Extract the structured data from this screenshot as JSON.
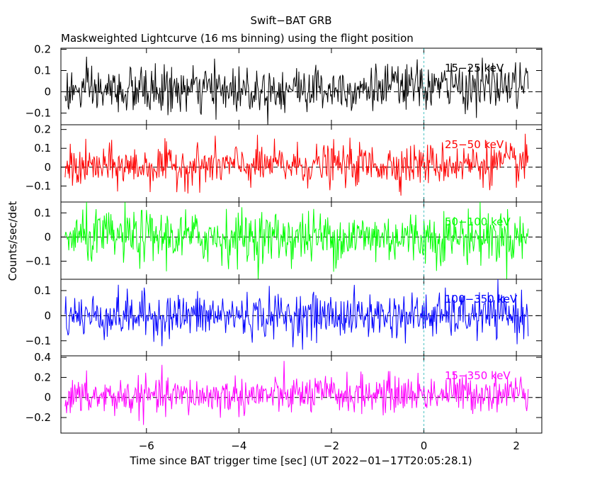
{
  "chart_data": {
    "type": "line",
    "title": "Swift−BAT GRB",
    "subtitle": "Maskweighted Lightcurve (16 ms binning) using the flight position",
    "xlabel": "Time since BAT trigger time [sec] (UT 2022−01−17T20:05:28.1)",
    "ylabel": "Counts/sec/det",
    "xlim": [
      -7.85,
      2.55
    ],
    "x_ticks": [
      -6,
      -4,
      -2,
      0,
      2
    ],
    "x_tick_labels": [
      "−6",
      "−4",
      "−2",
      "0",
      "2"
    ],
    "binning_sec": 0.016,
    "x_start": -7.76,
    "x_end": 2.26,
    "trigger_marker_x": 0,
    "panels": [
      {
        "band": "15−25 keV",
        "color": "#000000",
        "ylim": [
          -0.155,
          0.205
        ],
        "y_ticks": [
          -0.1,
          0,
          0.1,
          0.2
        ],
        "y_tick_labels": [
          "−0.1",
          "0",
          "0.1",
          "0.2"
        ],
        "noise_sigma": 0.055,
        "mean_start": 0.0,
        "mean_end": 0.03
      },
      {
        "band": "25−50 keV",
        "color": "#ff0000",
        "ylim": [
          -0.185,
          0.225
        ],
        "y_ticks": [
          -0.1,
          0,
          0.1,
          0.2
        ],
        "y_tick_labels": [
          "−0.1",
          "0",
          "0.1",
          "0.2"
        ],
        "noise_sigma": 0.055,
        "mean_start": 0.0,
        "mean_end": 0.02
      },
      {
        "band": "50−100 keV",
        "color": "#00ff00",
        "ylim": [
          -0.175,
          0.145
        ],
        "y_ticks": [
          -0.1,
          0,
          0.1
        ],
        "y_tick_labels": [
          "−0.1",
          "0",
          "0.1"
        ],
        "noise_sigma": 0.055,
        "mean_start": 0.0,
        "mean_end": 0.0
      },
      {
        "band": "100−350 keV",
        "color": "#0000ff",
        "ylim": [
          -0.16,
          0.145
        ],
        "y_ticks": [
          -0.1,
          0,
          0.1
        ],
        "y_tick_labels": [
          "−0.1",
          "0",
          "0.1"
        ],
        "noise_sigma": 0.045,
        "mean_start": 0.0,
        "mean_end": 0.0
      },
      {
        "band": "15−350 keV",
        "color": "#ff00ff",
        "ylim": [
          -0.355,
          0.415
        ],
        "y_ticks": [
          -0.2,
          0,
          0.2,
          0.4
        ],
        "y_tick_labels": [
          "−0.2",
          "0",
          "0.2",
          "0.4"
        ],
        "noise_sigma": 0.095,
        "mean_start": 0.0,
        "mean_end": 0.05
      }
    ]
  }
}
